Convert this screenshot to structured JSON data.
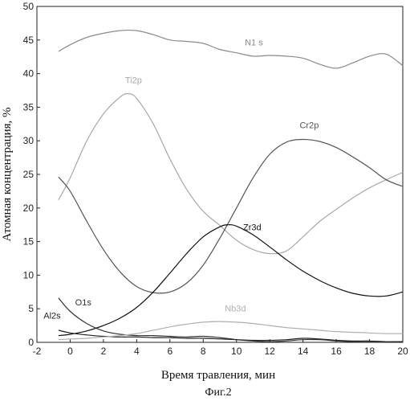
{
  "chart_data": {
    "type": "line",
    "xlabel": "Время травления, мин",
    "ylabel": "Атомная концентрация, %",
    "caption": "Фиг.2",
    "xlim": [
      -2,
      20
    ],
    "ylim": [
      0,
      50
    ],
    "x_ticks": [
      "-2",
      "0",
      "2",
      "4",
      "6",
      "8",
      "10",
      "12",
      "14",
      "16",
      "18",
      "20"
    ],
    "y_ticks": [
      "0",
      "5",
      "10",
      "15",
      "20",
      "25",
      "30",
      "35",
      "40",
      "45",
      "50"
    ],
    "grid": false,
    "series": [
      {
        "name": "N1 s",
        "color": "#8a8a8a",
        "label_at": [
          10.5,
          44.2
        ],
        "x": [
          -0.7,
          0,
          1,
          2,
          3,
          4,
          5,
          6,
          7,
          8,
          9,
          10,
          11,
          12,
          13,
          14,
          15,
          16,
          17,
          18,
          19,
          20
        ],
        "y": [
          43.3,
          44.3,
          45.4,
          46.0,
          46.4,
          46.4,
          45.8,
          45.0,
          44.8,
          44.5,
          43.6,
          43.1,
          42.6,
          42.7,
          42.6,
          42.3,
          41.4,
          40.8,
          41.6,
          42.6,
          42.9,
          41.2
        ]
      },
      {
        "name": "Ti2p",
        "color": "#a8a8a8",
        "label_at": [
          3.3,
          38.6
        ],
        "x": [
          -0.7,
          0,
          1,
          2,
          3,
          3.5,
          4,
          5,
          6,
          7,
          8,
          9,
          10,
          11,
          12,
          13,
          14,
          15,
          16,
          17,
          18,
          19,
          20
        ],
        "y": [
          21.2,
          24.5,
          30.0,
          34.0,
          36.5,
          37.0,
          36.3,
          32.5,
          27.3,
          22.8,
          19.5,
          17.4,
          15.2,
          13.8,
          13.2,
          13.6,
          15.7,
          18.0,
          19.8,
          21.5,
          23.0,
          24.2,
          25.3
        ]
      },
      {
        "name": "Cr2p",
        "color": "#555555",
        "label_at": [
          13.8,
          31.9
        ],
        "x": [
          -0.7,
          0,
          1,
          2,
          3,
          4,
          5,
          6,
          7,
          8,
          9,
          10,
          11,
          12,
          13,
          14,
          15,
          16,
          17,
          18,
          19,
          20
        ],
        "y": [
          24.6,
          22.5,
          18.0,
          13.8,
          10.5,
          8.3,
          7.4,
          7.5,
          8.8,
          11.5,
          15.5,
          20.0,
          24.5,
          28.0,
          29.8,
          30.2,
          29.9,
          29.0,
          27.6,
          26.0,
          24.2,
          23.2
        ]
      },
      {
        "name": "Zr3d",
        "color": "#111111",
        "label_at": [
          10.4,
          16.7
        ],
        "x": [
          -0.7,
          0,
          1,
          2,
          3,
          4,
          5,
          6,
          7,
          8,
          9,
          9.5,
          10,
          11,
          12,
          13,
          14,
          15,
          16,
          17,
          18,
          19,
          20
        ],
        "y": [
          1.0,
          1.2,
          1.7,
          2.5,
          3.6,
          5.2,
          7.5,
          10.3,
          13.2,
          15.7,
          17.2,
          17.5,
          17.3,
          16.0,
          14.2,
          12.3,
          10.6,
          9.2,
          8.1,
          7.3,
          6.9,
          6.9,
          7.5
        ]
      },
      {
        "name": "O1s",
        "color": "#333333",
        "label_at": [
          0.3,
          5.5
        ],
        "x": [
          -0.7,
          0,
          1,
          2,
          3,
          4,
          5,
          6,
          7,
          8,
          9,
          10,
          11,
          12,
          13,
          14,
          15,
          16,
          17,
          18,
          19,
          20
        ],
        "y": [
          6.6,
          4.6,
          2.8,
          1.7,
          1.2,
          1.0,
          1.0,
          0.9,
          0.8,
          0.9,
          0.7,
          0.4,
          0.2,
          0.1,
          0.2,
          0.4,
          0.4,
          0.2,
          0.1,
          0.05,
          0.05,
          0.1
        ]
      },
      {
        "name": "Al2s",
        "color": "#222222",
        "label_at": [
          -1.6,
          3.5
        ],
        "x": [
          -0.7,
          0,
          1,
          2,
          3,
          4,
          5,
          6,
          7,
          8,
          9,
          10,
          11,
          12,
          13,
          14,
          15,
          16,
          17,
          18,
          19,
          20
        ],
        "y": [
          1.8,
          1.4,
          1.1,
          0.9,
          0.8,
          0.8,
          0.7,
          0.7,
          0.6,
          0.6,
          0.5,
          0.4,
          0.3,
          0.3,
          0.4,
          0.6,
          0.5,
          0.3,
          0.2,
          0.2,
          0.1,
          0.1
        ]
      },
      {
        "name": "Nb3d",
        "color": "#b0b0b0",
        "label_at": [
          9.3,
          4.6
        ],
        "x": [
          -0.7,
          0,
          1,
          2,
          3,
          4,
          5,
          6,
          7,
          8,
          9,
          10,
          11,
          12,
          13,
          14,
          15,
          16,
          17,
          18,
          19,
          20
        ],
        "y": [
          0.4,
          0.5,
          0.6,
          0.8,
          1.0,
          1.3,
          1.8,
          2.3,
          2.7,
          3.0,
          3.1,
          3.0,
          2.8,
          2.5,
          2.2,
          2.0,
          1.8,
          1.6,
          1.5,
          1.4,
          1.3,
          1.3
        ]
      }
    ]
  }
}
